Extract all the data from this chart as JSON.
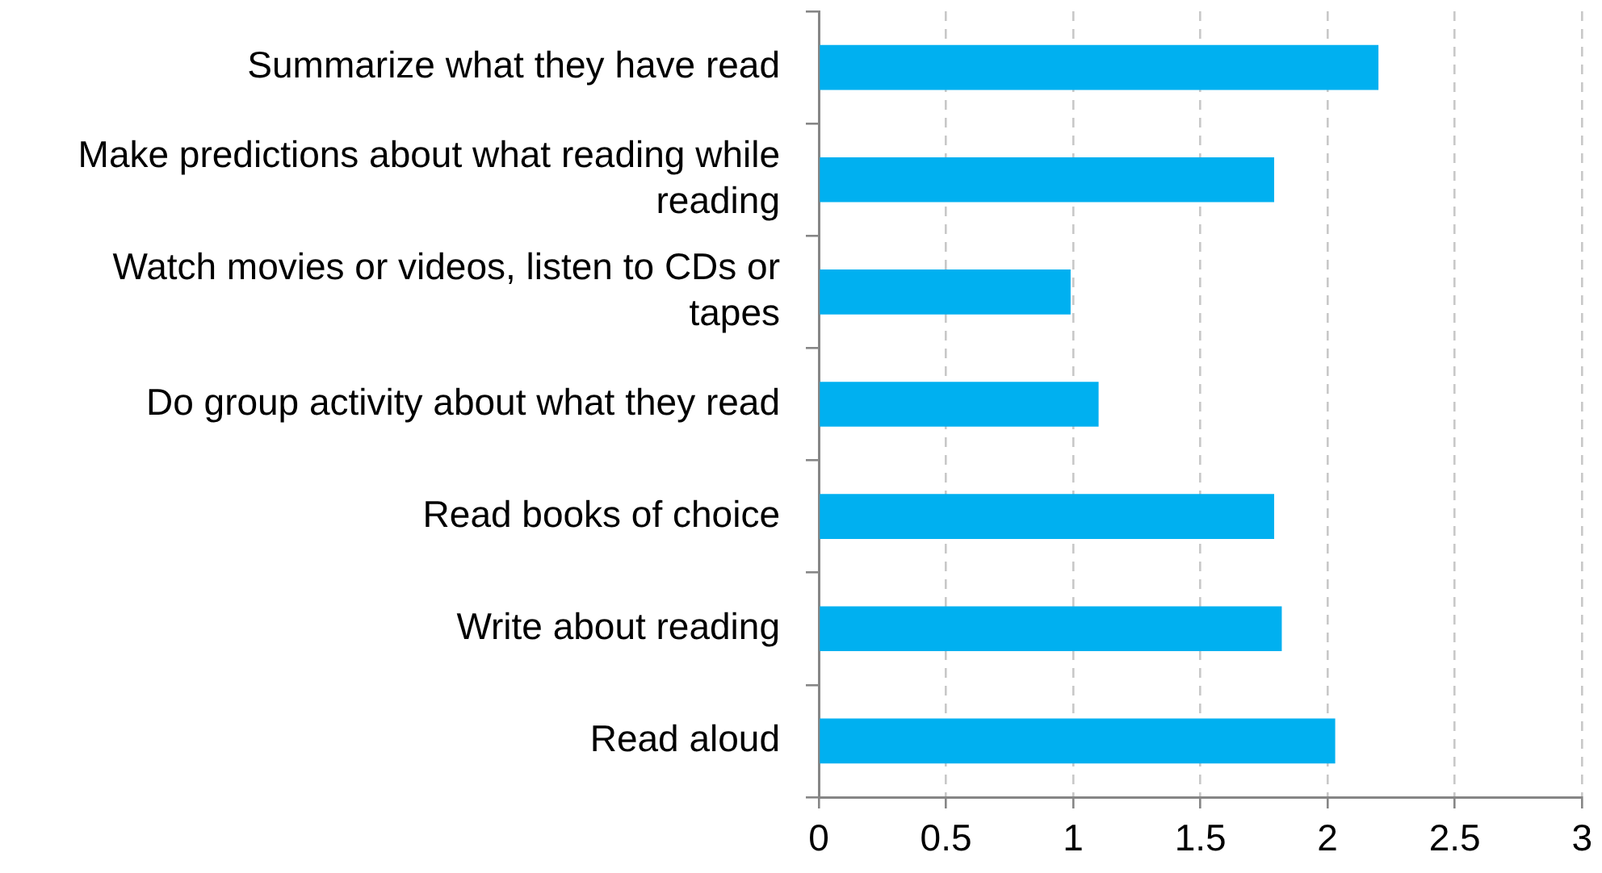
{
  "chart_data": {
    "type": "bar",
    "orientation": "horizontal",
    "categories": [
      "Summarize what they have read",
      "Make predictions about what reading while reading",
      "Watch movies or videos, listen to CDs or tapes",
      "Do group activity about what they read",
      "Read books of choice",
      "Write about reading",
      "Read aloud"
    ],
    "values": [
      2.2,
      1.79,
      0.99,
      1.1,
      1.79,
      1.82,
      2.03
    ],
    "color": "#00b0f0",
    "xlim": [
      0,
      3
    ],
    "xticks": [
      0,
      0.5,
      1,
      1.5,
      2,
      2.5,
      3
    ],
    "grid": "x"
  }
}
